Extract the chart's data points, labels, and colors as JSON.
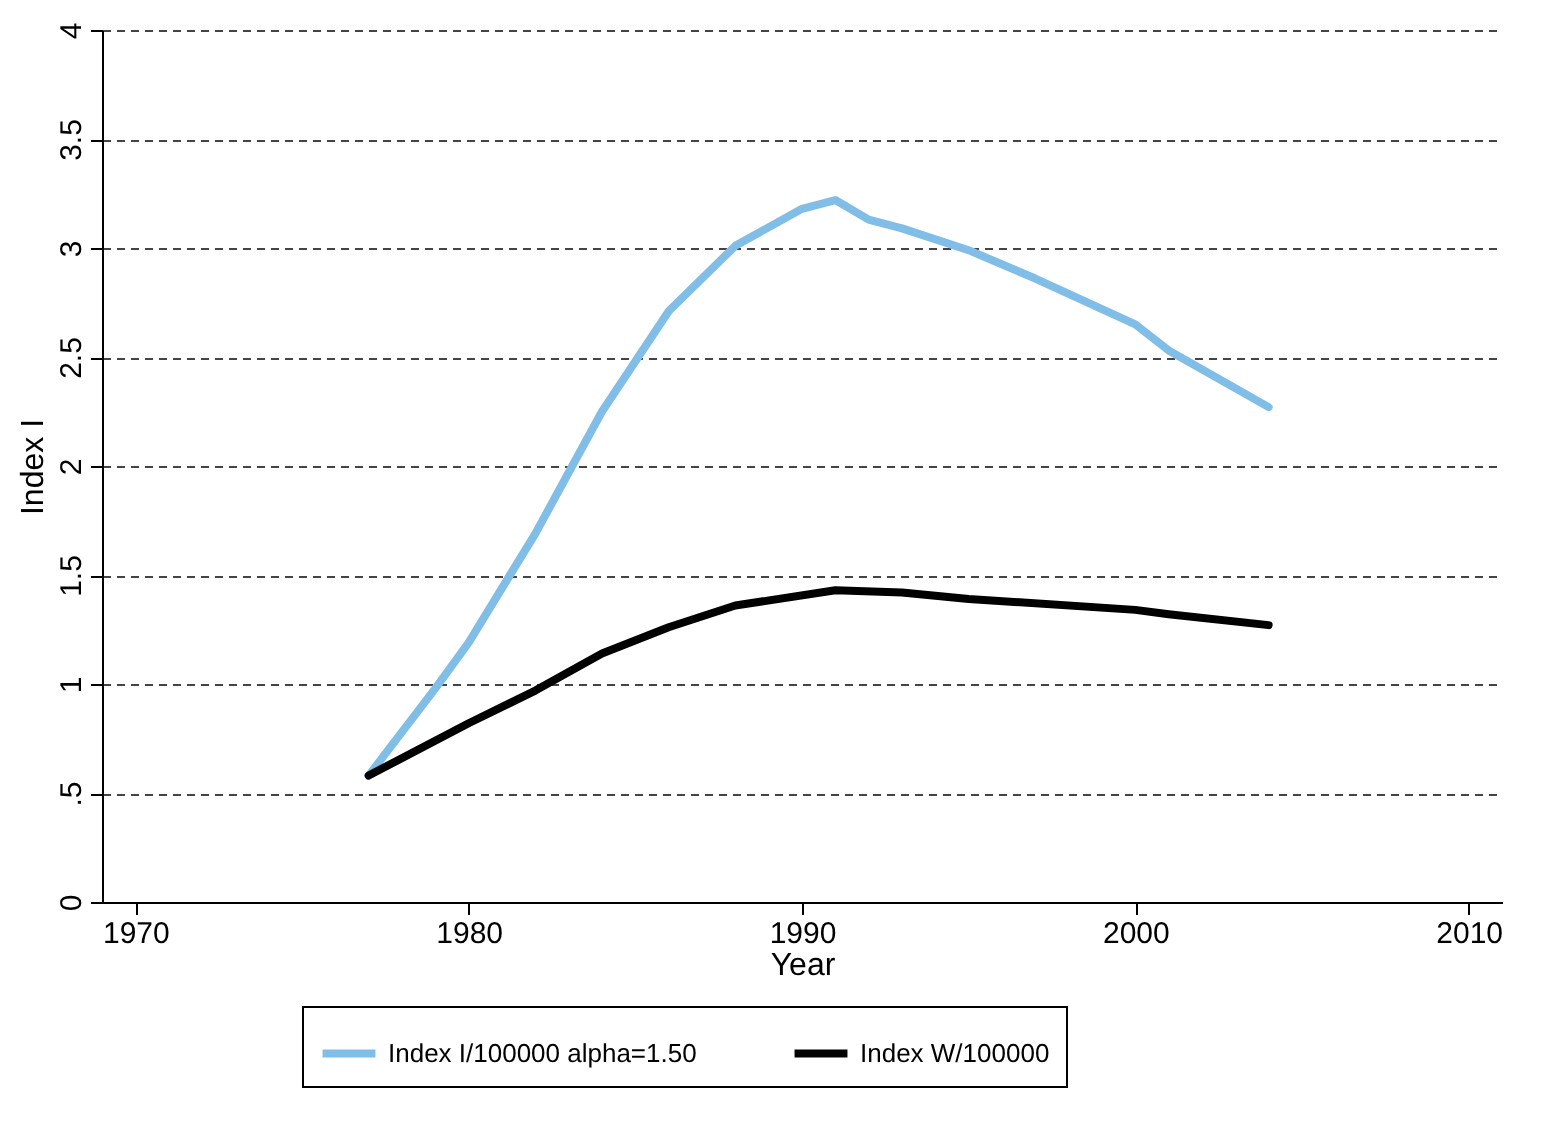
{
  "chart_data": {
    "type": "line",
    "xlabel": "Year",
    "ylabel": "Index I",
    "xlim": [
      1969,
      2011
    ],
    "xticks": [
      1970,
      1980,
      1990,
      2000,
      2010
    ],
    "ylim": [
      0,
      4
    ],
    "yticks": [
      0,
      {
        "value": 0.5,
        "label": ".5"
      },
      1,
      1.5,
      2,
      2.5,
      3,
      3.5,
      4
    ],
    "grid": "y",
    "legend": "bottom",
    "line_style": "solid",
    "marker": "none",
    "series": [
      {
        "name": "Index I/100000 alpha=1.50",
        "color": "#80bde7",
        "x": [
          1977,
          1979,
          1980,
          1982,
          1984,
          1986,
          1988,
          1990,
          1991,
          1992,
          1993,
          1995,
          1997,
          2000,
          2001,
          2004
        ],
        "values": [
          0.58,
          0.98,
          1.19,
          1.69,
          2.25,
          2.71,
          3.01,
          3.18,
          3.22,
          3.13,
          3.09,
          2.99,
          2.86,
          2.65,
          2.53,
          2.27
        ]
      },
      {
        "name": "Index W/100000",
        "color": "#000000",
        "x": [
          1977,
          1980,
          1982,
          1984,
          1986,
          1988,
          1991,
          1993,
          1995,
          2000,
          2001,
          2004
        ],
        "values": [
          0.58,
          0.82,
          0.97,
          1.14,
          1.26,
          1.36,
          1.43,
          1.42,
          1.39,
          1.34,
          1.32,
          1.27
        ]
      }
    ]
  }
}
